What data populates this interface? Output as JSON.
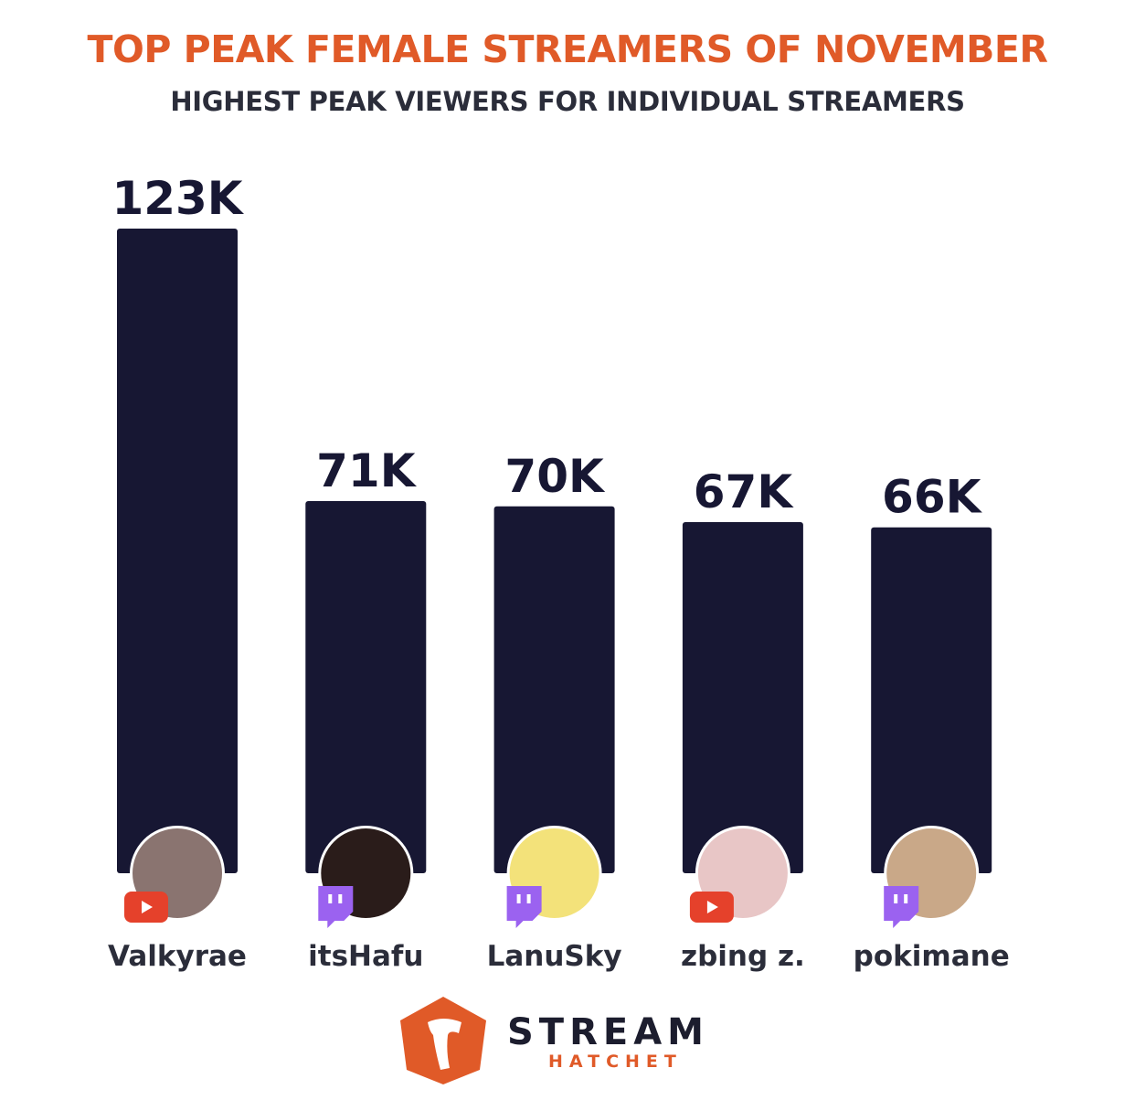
{
  "chart_data": {
    "type": "bar",
    "title": "TOP PEAK FEMALE STREAMERS OF NOVEMBER",
    "subtitle": "HIGHEST PEAK VIEWERS FOR INDIVIDUAL STREAMERS",
    "categories": [
      "Valkyrae",
      "itsHafu",
      "LanuSky",
      "zbing z.",
      "pokimane"
    ],
    "values": [
      123,
      71,
      70,
      67,
      66
    ],
    "data_labels": [
      "123K",
      "71K",
      "70K",
      "67K",
      "66K"
    ],
    "platforms": [
      "youtube",
      "twitch",
      "twitch",
      "youtube",
      "twitch"
    ],
    "unit": "K",
    "ylim": [
      0,
      123
    ],
    "grid": false,
    "xlabel": "",
    "ylabel": ""
  },
  "colors": {
    "bar": "#171733",
    "title": "#e05a28",
    "text": "#2b2d3a",
    "youtube": "#e5412b",
    "twitch": "#9b62f0"
  },
  "logo": {
    "word": "STREAM",
    "sub": "HATCHET"
  }
}
